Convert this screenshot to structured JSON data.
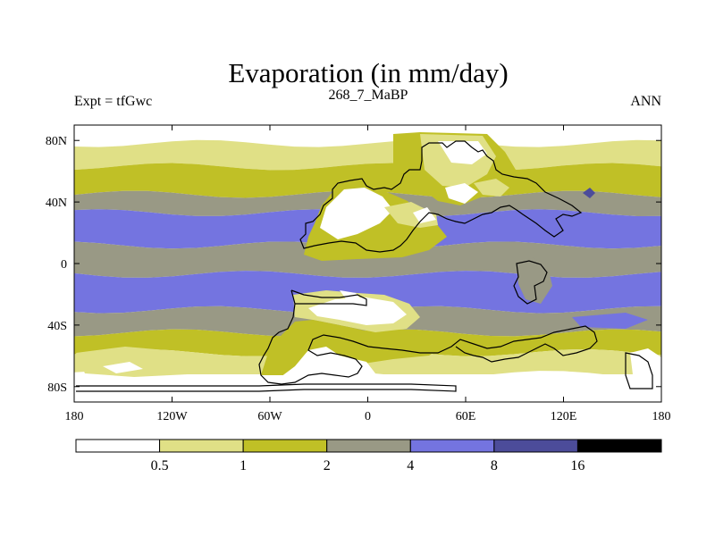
{
  "chart_data": {
    "type": "heatmap",
    "title": "Evaporation (in mm/day)",
    "left_label": "Expt = tfGwc",
    "center_label": "268_7_MaBP",
    "right_label": "ANN",
    "x_ticks": [
      "180",
      "120W",
      "60W",
      "0",
      "60E",
      "120E",
      "180"
    ],
    "x_range": [
      -180,
      180
    ],
    "y_ticks": [
      "80N",
      "40N",
      "0",
      "40S",
      "80S"
    ],
    "y_range": [
      -90,
      90
    ],
    "colorbar": {
      "levels": [
        "0.5",
        "1",
        "2",
        "4",
        "8",
        "16"
      ],
      "colors": [
        "#ffffff",
        "#e0e086",
        "#c0c026",
        "#999985",
        "#7474e0",
        "#4c4c9a",
        "#000000"
      ]
    },
    "zonal_bands": [
      {
        "lat": [
          90,
          78
        ],
        "category": "<0.5"
      },
      {
        "lat": [
          78,
          63
        ],
        "category": "0.5-1"
      },
      {
        "lat": [
          63,
          45
        ],
        "category": "1-2"
      },
      {
        "lat": [
          45,
          33
        ],
        "category": "2-4"
      },
      {
        "lat": [
          33,
          12
        ],
        "category": "4-8"
      },
      {
        "lat": [
          12,
          -7
        ],
        "category": "2-4"
      },
      {
        "lat": [
          -7,
          -30
        ],
        "category": "4-8"
      },
      {
        "lat": [
          -30,
          -45
        ],
        "category": "2-4"
      },
      {
        "lat": [
          -45,
          -58
        ],
        "category": "1-2"
      },
      {
        "lat": [
          -58,
          -72
        ],
        "category": "0.5-1"
      },
      {
        "lat": [
          -72,
          -90
        ],
        "category": "<0.5"
      }
    ]
  }
}
